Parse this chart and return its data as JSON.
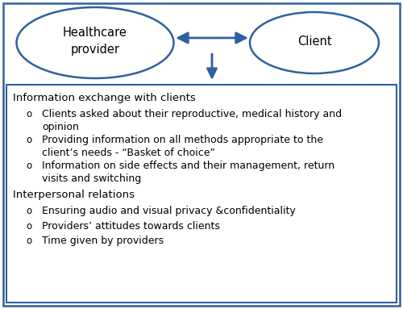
{
  "background_color": "#ffffff",
  "border_color": "#3060a0",
  "ellipse_edge_color": "#3060a0",
  "arrow_color": "#3060a0",
  "provider_label": "Healthcare\nprovider",
  "client_label": "Client",
  "section1_header": "Information exchange with clients",
  "section1_bullets": [
    "Clients asked about their reproductive, medical history and\nopinion",
    "Providing information on all methods appropriate to the\nclient’s needs - “Basket of choice”",
    "Information on side effects and their management, return\nvisits and switching"
  ],
  "section2_header": "Interpersonal relations",
  "section2_bullets": [
    "Ensuring audio and visual privacy &confidentiality",
    "Providers’ attitudes towards clients",
    "Time given by providers"
  ],
  "font_size_header": 9.5,
  "font_size_bullet": 9.0,
  "font_size_ellipse": 10.5
}
